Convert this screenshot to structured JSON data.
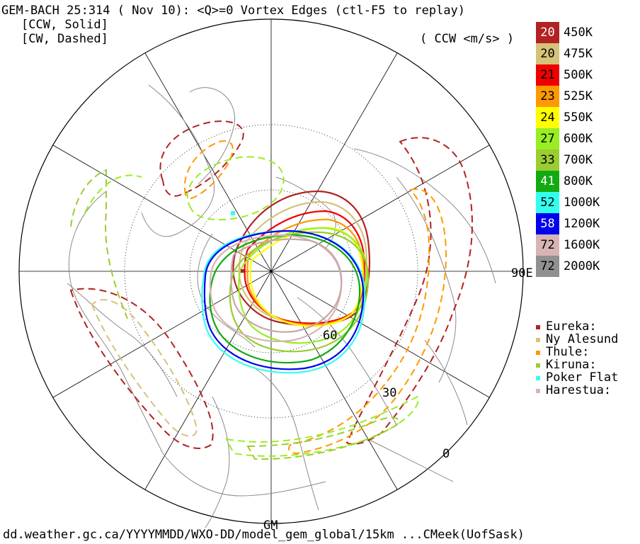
{
  "header": {
    "title": "GEM-BACH 25:314 ( Nov 10): <Q>=0 Vortex Edges (ctl-F5 to replay)",
    "ccw_note": "[CCW, Solid]",
    "cw_note": "[CW, Dashed]",
    "units": "( CCW <m/s> )"
  },
  "levels": [
    {
      "speed": "20",
      "level": "450K",
      "color": "#b22222",
      "text_color": "#ffffff"
    },
    {
      "speed": "20",
      "level": "475K",
      "color": "#d6c27a",
      "text_color": "#000000"
    },
    {
      "speed": "21",
      "level": "500K",
      "color": "#ee0000",
      "text_color": "#000000"
    },
    {
      "speed": "23",
      "level": "525K",
      "color": "#ff9900",
      "text_color": "#000000"
    },
    {
      "speed": "24",
      "level": "550K",
      "color": "#ffff00",
      "text_color": "#000000"
    },
    {
      "speed": "27",
      "level": "600K",
      "color": "#99ee22",
      "text_color": "#000000"
    },
    {
      "speed": "33",
      "level": "700K",
      "color": "#9acd32",
      "text_color": "#000000"
    },
    {
      "speed": "41",
      "level": "800K",
      "color": "#11aa11",
      "text_color": "#ffffff"
    },
    {
      "speed": "52",
      "level": "1000K",
      "color": "#33ffee",
      "text_color": "#000000"
    },
    {
      "speed": "58",
      "level": "1200K",
      "color": "#0000ee",
      "text_color": "#ffffff"
    },
    {
      "speed": "72",
      "level": "1600K",
      "color": "#d8b4b4",
      "text_color": "#000000"
    },
    {
      "speed": "72",
      "level": "2000K",
      "color": "#909090",
      "text_color": "#000000"
    }
  ],
  "stations": [
    {
      "name": "Eureka:",
      "color": "#b22222"
    },
    {
      "name": "Ny Alesund",
      "color": "#d6c27a"
    },
    {
      "name": "Thule:",
      "color": "#ff9900"
    },
    {
      "name": "Kiruna:",
      "color": "#99cc33"
    },
    {
      "name": "Poker Flat",
      "color": "#33ffee"
    },
    {
      "name": "Harestua:",
      "color": "#d8b4b4"
    }
  ],
  "map_labels": {
    "lon_90e": "90E",
    "lon_gm": "GM",
    "lat_60": "60",
    "lat_30": "30",
    "lat_0": "0"
  },
  "footer": "dd.weather.gc.ca/YYYYMMDD/WXO-DD/model_gem_global/15km ...CMeek(UofSask)"
}
